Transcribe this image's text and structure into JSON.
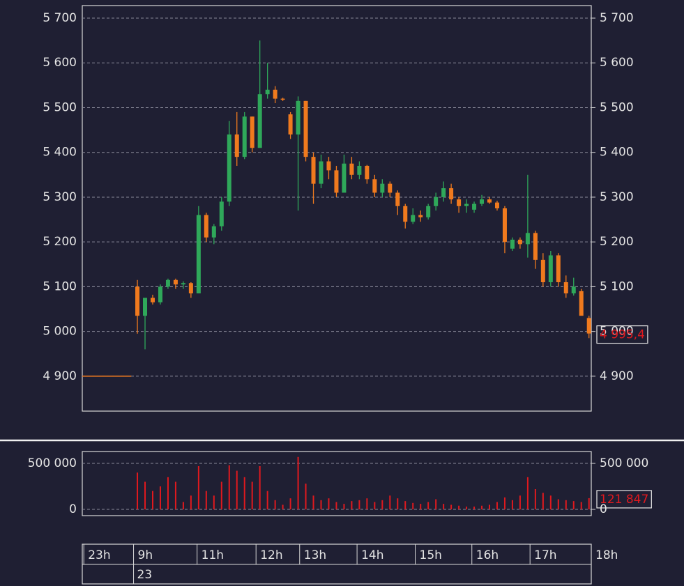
{
  "chart_data": [
    {
      "type": "candlestick",
      "up_color": "#2fa85a",
      "down_color": "#f07a1e",
      "grid": true,
      "xlim": [
        -7.2,
        59.3
      ],
      "xticks": [
        {
          "value": -7,
          "label": "23h"
        },
        {
          "value": -0.5,
          "label": "9h"
        },
        {
          "value": 7.8,
          "label": "11h"
        },
        {
          "value": 15.5,
          "label": "12h"
        },
        {
          "value": 21.2,
          "label": "13h"
        },
        {
          "value": 28.7,
          "label": "14h"
        },
        {
          "value": 36.3,
          "label": "15h"
        },
        {
          "value": 43.7,
          "label": "16h"
        },
        {
          "value": 51.3,
          "label": "17h"
        },
        {
          "value": 59.3,
          "label": "18h"
        }
      ],
      "date_label": "23",
      "ylim": [
        4822,
        5728
      ],
      "yticks": [
        {
          "value": 4900,
          "label": "4 900"
        },
        {
          "value": 5000,
          "label": "5 000"
        },
        {
          "value": 5100,
          "label": "5 100"
        },
        {
          "value": 5200,
          "label": "5 200"
        },
        {
          "value": 5300,
          "label": "5 300"
        },
        {
          "value": 5400,
          "label": "5 400"
        },
        {
          "value": 5500,
          "label": "5 500"
        },
        {
          "value": 5600,
          "label": "5 600"
        },
        {
          "value": 5700,
          "label": "5 700"
        }
      ],
      "previous_close": 4900,
      "open": [
        5100,
        5035,
        5075,
        5065,
        5100,
        5115,
        5105,
        5108,
        5085,
        5260,
        5210,
        5235,
        5290,
        5440,
        5390,
        5480,
        5410,
        5530,
        5540,
        5520,
        5485,
        5440,
        5515,
        5390,
        5330,
        5380,
        5360,
        5310,
        5375,
        5350,
        5370,
        5340,
        5310,
        5330,
        5310,
        5280,
        5245,
        5260,
        5255,
        5280,
        5300,
        5320,
        5295,
        5280,
        5272,
        5285,
        5295,
        5288,
        5275,
        5185,
        5205,
        5195,
        5220,
        5160,
        5110,
        5170,
        5110,
        5085,
        5090,
        5030
      ],
      "high": [
        5115,
        5075,
        5082,
        5105,
        5118,
        5118,
        5112,
        5110,
        5280,
        5265,
        5240,
        5300,
        5470,
        5490,
        5490,
        5480,
        5650,
        5600,
        5548,
        5522,
        5490,
        5525,
        5515,
        5400,
        5395,
        5390,
        5370,
        5395,
        5390,
        5380,
        5372,
        5350,
        5340,
        5335,
        5315,
        5285,
        5275,
        5270,
        5285,
        5310,
        5335,
        5330,
        5300,
        5295,
        5290,
        5305,
        5300,
        5292,
        5280,
        5210,
        5210,
        5350,
        5225,
        5175,
        5180,
        5175,
        5125,
        5120,
        5095,
        5035
      ],
      "low": [
        4995,
        4960,
        5060,
        5060,
        5095,
        5095,
        5095,
        5075,
        5085,
        5200,
        5195,
        5225,
        5280,
        5370,
        5385,
        5400,
        5415,
        5520,
        5510,
        5515,
        5430,
        5270,
        5380,
        5285,
        5320,
        5340,
        5300,
        5310,
        5340,
        5340,
        5330,
        5300,
        5300,
        5300,
        5260,
        5230,
        5240,
        5245,
        5250,
        5270,
        5290,
        5285,
        5265,
        5265,
        5265,
        5280,
        5285,
        5270,
        5175,
        5180,
        5185,
        5165,
        5140,
        5100,
        5100,
        5100,
        5075,
        5080,
        5040,
        4985
      ],
      "close": [
        5035,
        5075,
        5065,
        5100,
        5115,
        5105,
        5108,
        5085,
        5260,
        5210,
        5235,
        5290,
        5440,
        5390,
        5480,
        5410,
        5530,
        5540,
        5520,
        5518,
        5440,
        5515,
        5390,
        5330,
        5380,
        5360,
        5310,
        5375,
        5350,
        5370,
        5340,
        5310,
        5330,
        5310,
        5280,
        5245,
        5260,
        5255,
        5280,
        5300,
        5320,
        5295,
        5280,
        5285,
        5285,
        5295,
        5288,
        5275,
        5200,
        5205,
        5195,
        5220,
        5160,
        5110,
        5170,
        5110,
        5085,
        5100,
        5035,
        4995.4
      ],
      "value_labels": [
        null,
        null,
        null,
        null,
        null,
        null,
        null,
        null,
        null,
        null,
        null,
        null,
        null,
        null,
        null,
        null,
        null,
        null,
        null,
        null,
        null,
        null,
        null,
        null,
        null,
        null,
        null,
        null,
        null,
        null,
        null,
        null,
        null,
        null,
        null,
        null,
        null,
        null,
        null,
        null,
        null,
        null,
        null,
        null,
        null,
        null,
        null,
        null,
        null,
        null,
        null,
        null,
        null,
        null,
        null,
        null,
        null,
        null,
        null,
        "4 995,4"
      ]
    },
    {
      "type": "bar",
      "color": "#e0191e",
      "grid": true,
      "xlim": [
        -7.2,
        59.3
      ],
      "ylim": [
        -68000,
        629000
      ],
      "yticks": [
        0,
        {
          "value": 500000,
          "label": "500 000"
        }
      ],
      "values": [
        400000,
        300000,
        200000,
        250000,
        350000,
        300000,
        80000,
        150000,
        470000,
        200000,
        150000,
        300000,
        480000,
        420000,
        350000,
        300000,
        470000,
        200000,
        100000,
        50000,
        120000,
        570000,
        280000,
        150000,
        100000,
        120000,
        80000,
        60000,
        90000,
        100000,
        120000,
        80000,
        100000,
        150000,
        120000,
        90000,
        70000,
        60000,
        80000,
        110000,
        60000,
        50000,
        40000,
        30000,
        30000,
        40000,
        50000,
        80000,
        130000,
        100000,
        150000,
        350000,
        220000,
        180000,
        150000,
        110000,
        100000,
        90000,
        80000,
        121847
      ],
      "value_labels": [
        null,
        null,
        null,
        null,
        null,
        null,
        null,
        null,
        null,
        null,
        null,
        null,
        null,
        null,
        null,
        null,
        null,
        null,
        null,
        null,
        null,
        null,
        null,
        null,
        null,
        null,
        null,
        null,
        null,
        null,
        null,
        null,
        null,
        null,
        null,
        null,
        null,
        null,
        null,
        null,
        null,
        null,
        null,
        null,
        null,
        null,
        null,
        null,
        null,
        null,
        null,
        null,
        null,
        null,
        null,
        null,
        null,
        null,
        null,
        "121 847"
      ]
    }
  ]
}
